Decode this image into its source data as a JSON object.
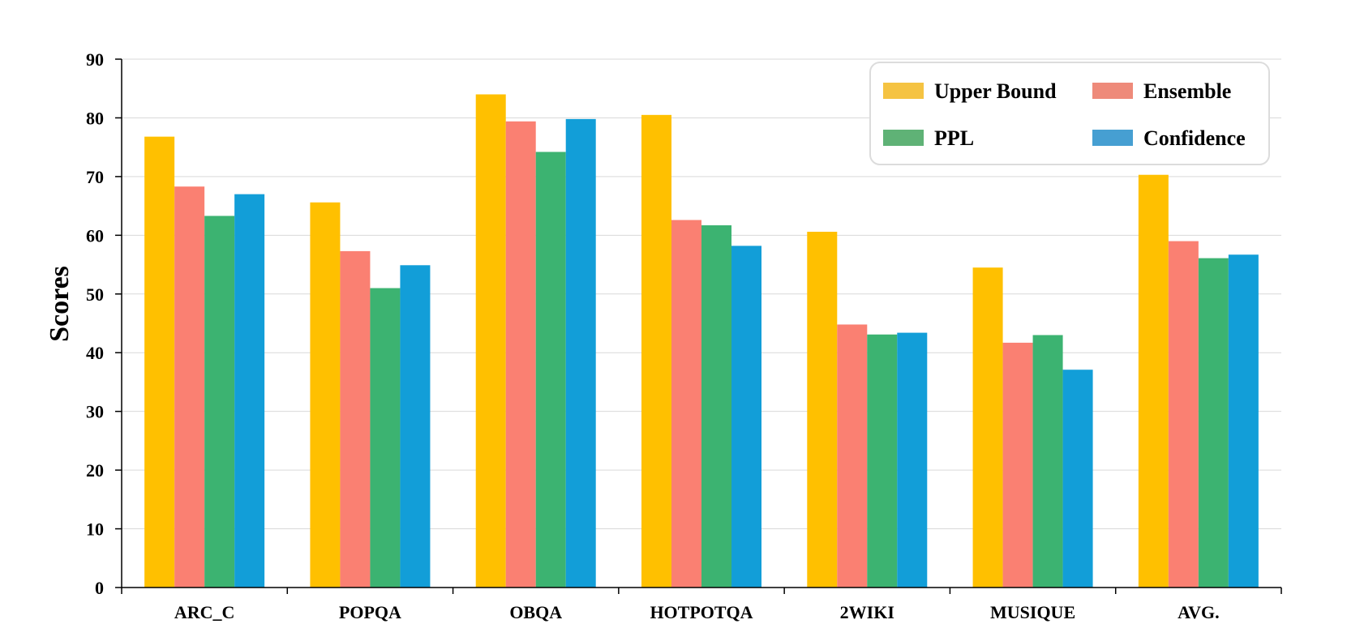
{
  "chart_data": {
    "type": "bar",
    "title": "",
    "xlabel": "",
    "ylabel": "Scores",
    "ylim": [
      0,
      90
    ],
    "yticks": [
      0,
      10,
      20,
      30,
      40,
      50,
      60,
      70,
      80,
      90
    ],
    "grid": "horizontal",
    "legend_position": "top-right",
    "categories": [
      "ARC_C",
      "POPQA",
      "OBQA",
      "HOTPOTQA",
      "2WIKI",
      "MUSIQUE",
      "AVG."
    ],
    "series": [
      {
        "name": "Upper Bound",
        "color": "#FFC000",
        "legend_color": "#F5C342",
        "values": [
          76.8,
          65.6,
          84.0,
          80.5,
          60.6,
          54.5,
          70.3
        ]
      },
      {
        "name": "Ensemble",
        "color": "#FA8072",
        "legend_color": "#EE8A7A",
        "values": [
          68.3,
          57.3,
          79.4,
          62.6,
          44.8,
          41.7,
          59.0
        ]
      },
      {
        "name": "PPL",
        "color": "#3CB371",
        "legend_color": "#5FB276",
        "values": [
          63.3,
          51.0,
          74.2,
          61.7,
          43.1,
          43.0,
          56.1
        ]
      },
      {
        "name": "Confidence",
        "color": "#129ED8",
        "legend_color": "#469FD2",
        "values": [
          67.0,
          54.9,
          79.8,
          58.2,
          43.4,
          37.1,
          56.7
        ]
      }
    ]
  }
}
